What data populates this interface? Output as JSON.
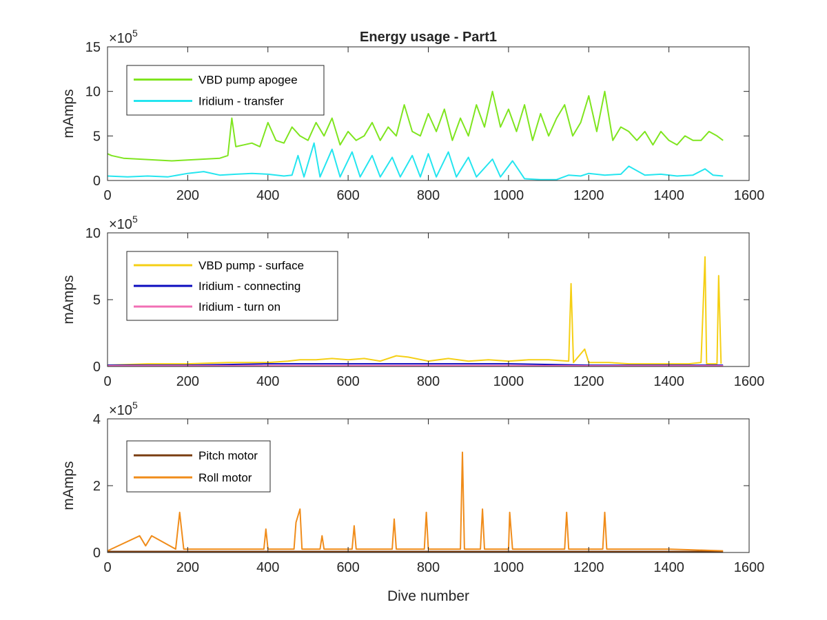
{
  "chart_data": [
    {
      "type": "line",
      "title": "Energy usage - Part1",
      "xlabel": "",
      "ylabel": "mAmps",
      "xlim": [
        0,
        1600
      ],
      "ylim": [
        0,
        15
      ],
      "y_exponent": "5",
      "x_ticks": [
        "0",
        "200",
        "400",
        "600",
        "800",
        "1000",
        "1200",
        "1400",
        "1600"
      ],
      "y_ticks": [
        "0",
        "5",
        "10",
        "15"
      ],
      "grid": false,
      "legend_position": "top-left",
      "series": [
        {
          "name": "VBD pump apogee",
          "color": "#7fe51f",
          "x": [
            0,
            10,
            40,
            80,
            120,
            160,
            200,
            240,
            280,
            300,
            310,
            320,
            340,
            360,
            380,
            400,
            420,
            440,
            460,
            480,
            500,
            520,
            540,
            560,
            580,
            600,
            620,
            640,
            660,
            680,
            700,
            720,
            740,
            760,
            780,
            800,
            820,
            840,
            860,
            880,
            900,
            920,
            940,
            960,
            980,
            1000,
            1020,
            1040,
            1060,
            1080,
            1100,
            1120,
            1140,
            1160,
            1180,
            1200,
            1220,
            1240,
            1260,
            1280,
            1300,
            1320,
            1340,
            1360,
            1380,
            1400,
            1420,
            1440,
            1460,
            1480,
            1500,
            1520,
            1535
          ],
          "values": [
            3.0,
            2.8,
            2.5,
            2.4,
            2.3,
            2.2,
            2.3,
            2.4,
            2.5,
            2.8,
            7.0,
            3.8,
            4.0,
            4.2,
            3.8,
            6.5,
            4.5,
            4.2,
            6.0,
            5.0,
            4.5,
            6.5,
            5.0,
            7.0,
            4.0,
            5.5,
            4.5,
            5.0,
            6.5,
            4.5,
            6.0,
            5.0,
            8.5,
            5.5,
            5.0,
            7.5,
            5.5,
            8.0,
            4.5,
            7.0,
            5.0,
            8.5,
            6.0,
            10.0,
            6.0,
            8.0,
            5.5,
            8.5,
            4.5,
            7.5,
            5.0,
            7.0,
            8.5,
            5.0,
            6.5,
            9.5,
            5.5,
            10.0,
            4.5,
            6.0,
            5.5,
            4.5,
            5.5,
            4.0,
            5.5,
            4.5,
            4.0,
            5.0,
            4.5,
            4.5,
            5.5,
            5.0,
            4.5
          ]
        },
        {
          "name": "Iridium - transfer",
          "color": "#24e5ef",
          "x": [
            0,
            50,
            100,
            150,
            200,
            240,
            280,
            320,
            360,
            400,
            440,
            460,
            475,
            490,
            515,
            530,
            560,
            580,
            610,
            630,
            660,
            680,
            710,
            730,
            760,
            780,
            800,
            820,
            850,
            870,
            900,
            920,
            960,
            980,
            1010,
            1040,
            1080,
            1120,
            1150,
            1180,
            1200,
            1240,
            1280,
            1300,
            1340,
            1380,
            1420,
            1460,
            1490,
            1510,
            1535
          ],
          "values": [
            0.5,
            0.4,
            0.5,
            0.4,
            0.8,
            1.0,
            0.6,
            0.7,
            0.8,
            0.7,
            0.5,
            0.6,
            2.8,
            0.4,
            4.2,
            0.4,
            3.5,
            0.4,
            3.2,
            0.4,
            2.8,
            0.4,
            2.6,
            0.4,
            2.8,
            0.4,
            3.0,
            0.4,
            3.2,
            0.4,
            2.6,
            0.4,
            2.4,
            0.4,
            2.2,
            0.2,
            0.1,
            0.1,
            0.6,
            0.5,
            0.8,
            0.6,
            0.7,
            1.6,
            0.6,
            0.7,
            0.5,
            0.6,
            1.3,
            0.6,
            0.5
          ]
        }
      ]
    },
    {
      "type": "line",
      "title": "",
      "xlabel": "",
      "ylabel": "mAmps",
      "xlim": [
        0,
        1600
      ],
      "ylim": [
        0,
        10
      ],
      "y_exponent": "5",
      "x_ticks": [
        "0",
        "200",
        "400",
        "600",
        "800",
        "1000",
        "1200",
        "1400",
        "1600"
      ],
      "y_ticks": [
        "0",
        "5",
        "10"
      ],
      "grid": false,
      "legend_position": "top-left",
      "series": [
        {
          "name": "VBD pump - surface",
          "color": "#f5cf14",
          "x": [
            0,
            100,
            200,
            300,
            400,
            450,
            480,
            520,
            560,
            600,
            640,
            680,
            720,
            750,
            800,
            850,
            900,
            950,
            1000,
            1050,
            1100,
            1150,
            1156,
            1162,
            1190,
            1200,
            1250,
            1300,
            1350,
            1400,
            1450,
            1480,
            1490,
            1494,
            1500,
            1520,
            1524,
            1530
          ],
          "values": [
            0.1,
            0.2,
            0.2,
            0.3,
            0.3,
            0.4,
            0.5,
            0.5,
            0.6,
            0.5,
            0.6,
            0.4,
            0.8,
            0.7,
            0.4,
            0.6,
            0.4,
            0.5,
            0.4,
            0.5,
            0.5,
            0.4,
            6.2,
            0.3,
            1.3,
            0.3,
            0.3,
            0.2,
            0.2,
            0.2,
            0.2,
            0.3,
            8.2,
            0.2,
            0.2,
            0.2,
            6.8,
            0.2
          ]
        },
        {
          "name": "Iridium - connecting",
          "color": "#0b0bbf",
          "x": [
            0,
            200,
            400,
            600,
            800,
            1000,
            1200,
            1400,
            1535
          ],
          "values": [
            0.1,
            0.1,
            0.2,
            0.2,
            0.2,
            0.2,
            0.1,
            0.1,
            0.1
          ]
        },
        {
          "name": "Iridium - turn on",
          "color": "#f26fb5",
          "x": [
            0,
            200,
            400,
            600,
            800,
            1000,
            1200,
            1400,
            1535
          ],
          "values": [
            0.05,
            0.05,
            0.06,
            0.06,
            0.06,
            0.06,
            0.05,
            0.05,
            0.05
          ]
        }
      ]
    },
    {
      "type": "line",
      "title": "",
      "xlabel": "Dive number",
      "ylabel": "mAmps",
      "xlim": [
        0,
        1600
      ],
      "ylim": [
        0,
        4
      ],
      "y_exponent": "5",
      "x_ticks": [
        "0",
        "200",
        "400",
        "600",
        "800",
        "1000",
        "1200",
        "1400",
        "1600"
      ],
      "y_ticks": [
        "0",
        "2",
        "4"
      ],
      "grid": false,
      "legend_position": "top-left",
      "series": [
        {
          "name": "Pitch motor",
          "color": "#7a3d10",
          "x": [
            0,
            200,
            400,
            600,
            800,
            1000,
            1200,
            1400,
            1535
          ],
          "values": [
            0.03,
            0.03,
            0.03,
            0.03,
            0.03,
            0.03,
            0.03,
            0.03,
            0.03
          ]
        },
        {
          "name": "Roll motor",
          "color": "#f08c1a",
          "x": [
            0,
            80,
            95,
            110,
            170,
            180,
            190,
            300,
            390,
            395,
            400,
            465,
            470,
            480,
            485,
            530,
            535,
            540,
            610,
            615,
            620,
            710,
            715,
            720,
            790,
            795,
            800,
            880,
            885,
            890,
            930,
            935,
            940,
            1000,
            1003,
            1010,
            1140,
            1145,
            1150,
            1235,
            1240,
            1245,
            1300,
            1400,
            1535
          ],
          "values": [
            0.05,
            0.5,
            0.2,
            0.5,
            0.1,
            1.2,
            0.1,
            0.1,
            0.1,
            0.7,
            0.1,
            0.1,
            0.9,
            1.3,
            0.1,
            0.1,
            0.5,
            0.1,
            0.1,
            0.8,
            0.1,
            0.1,
            1.0,
            0.1,
            0.1,
            1.2,
            0.1,
            0.1,
            3.0,
            0.1,
            0.1,
            1.3,
            0.1,
            0.1,
            1.2,
            0.1,
            0.1,
            1.2,
            0.1,
            0.1,
            1.2,
            0.1,
            0.1,
            0.1,
            0.05
          ]
        }
      ]
    }
  ]
}
